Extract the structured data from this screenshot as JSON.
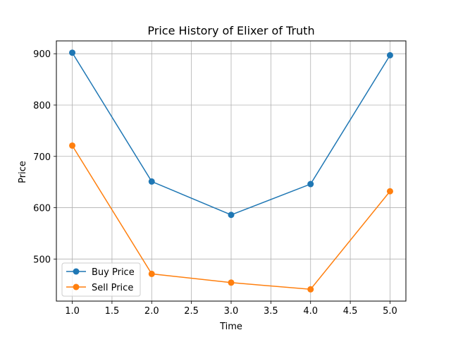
{
  "chart_data": {
    "type": "line",
    "title": "Price History of Elixer of Truth",
    "xlabel": "Time",
    "ylabel": "Price",
    "xlim": [
      0.8,
      5.2
    ],
    "ylim": [
      418,
      925
    ],
    "xticks": [
      1.0,
      1.5,
      2.0,
      2.5,
      3.0,
      3.5,
      4.0,
      4.5,
      5.0
    ],
    "xtick_labels": [
      "1.0",
      "1.5",
      "2.0",
      "2.5",
      "3.0",
      "3.5",
      "4.0",
      "4.5",
      "5.0"
    ],
    "yticks": [
      500,
      600,
      700,
      800,
      900
    ],
    "ytick_labels": [
      "500",
      "600",
      "700",
      "800",
      "900"
    ],
    "grid": true,
    "legend_position": "lower-left",
    "x": [
      1,
      2,
      3,
      4,
      5
    ],
    "series": [
      {
        "name": "Buy Price",
        "color": "#1f77b4",
        "marker": "circle",
        "values": [
          902,
          651,
          586,
          646,
          897
        ]
      },
      {
        "name": "Sell Price",
        "color": "#ff7f0e",
        "marker": "circle",
        "values": [
          721,
          471,
          454,
          441,
          632
        ]
      }
    ]
  }
}
